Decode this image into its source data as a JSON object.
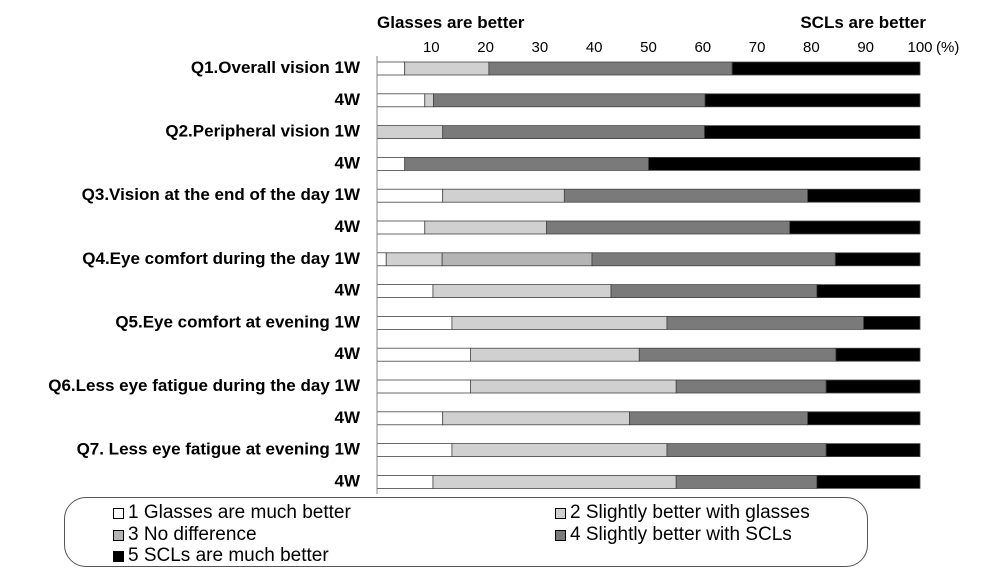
{
  "chart_data": {
    "type": "bar",
    "orientation": "horizontal",
    "stacked": true,
    "header_left": "Glasses are better",
    "header_right": "SCLs are better",
    "x_ticks": [
      "10",
      "20",
      "30",
      "40",
      "50",
      "60",
      "70",
      "80",
      "90",
      "100"
    ],
    "x_unit": "(%)",
    "xlim": [
      0,
      100
    ],
    "grid": false,
    "categories": [
      "Q1.Overall vision 1W",
      "4W",
      "Q2.Peripheral vision 1W",
      "4W",
      "Q3.Vision at the end of the day 1W",
      "4W",
      "Q4.Eye comfort during the day 1W",
      "4W",
      "Q5.Eye comfort at evening 1W",
      "4W",
      "Q6.Less eye fatigue during the day 1W",
      "4W",
      "Q7. Less eye fatigue at evening 1W",
      "4W"
    ],
    "series": [
      {
        "name": "1 Glasses are much better",
        "color": "#ffffff",
        "values": [
          5.1,
          8.8,
          0,
          5.1,
          12.1,
          8.8,
          1.7,
          10.3,
          13.8,
          17.2,
          17.2,
          12.1,
          13.8,
          10.3
        ]
      },
      {
        "name": "2 Slightly better with glasses",
        "color": "#d0d0d0",
        "values": [
          15.5,
          1.6,
          12.1,
          0,
          22.4,
          22.4,
          10.3,
          32.8,
          39.6,
          31.1,
          37.9,
          34.4,
          39.6,
          44.8
        ]
      },
      {
        "name": "3 No difference",
        "color": "#b4b4b4",
        "values": [
          0,
          0,
          0,
          0,
          0,
          0,
          27.6,
          0,
          0,
          0,
          0,
          0,
          0,
          0
        ]
      },
      {
        "name": "4 Slightly better with SCLs",
        "color": "#7a7a7a",
        "values": [
          44.8,
          50.0,
          48.2,
          44.9,
          44.8,
          44.8,
          44.8,
          37.9,
          36.2,
          36.2,
          27.6,
          32.8,
          29.3,
          25.9
        ]
      },
      {
        "name": "5 SCLs are much better",
        "color": "#000000",
        "values": [
          34.6,
          39.6,
          39.7,
          50.0,
          20.7,
          24.0,
          15.6,
          19.0,
          10.4,
          15.5,
          17.3,
          20.7,
          17.3,
          19.0
        ]
      }
    ]
  },
  "legend": {
    "items": [
      {
        "label": "1 Glasses are much better",
        "color": "#ffffff"
      },
      {
        "label": "2 Slightly better with glasses",
        "color": "#d0d0d0"
      },
      {
        "label": "3 No difference",
        "color": "#b4b4b4"
      },
      {
        "label": "4 Slightly better with SCLs",
        "color": "#7a7a7a"
      },
      {
        "label": "5 SCLs are much better",
        "color": "#000000"
      }
    ]
  }
}
